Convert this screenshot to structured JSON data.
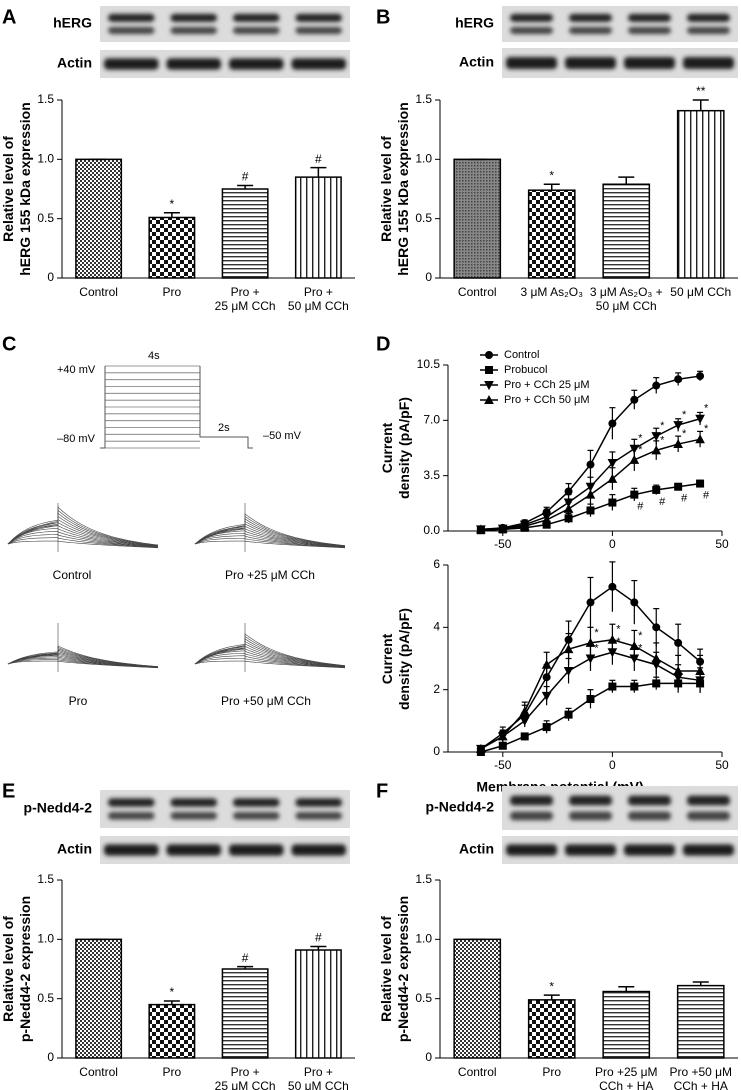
{
  "chart_data": [
    {
      "type": "bar",
      "panel": "A",
      "blot_labels": [
        "hERG",
        "Actin"
      ],
      "ylabel": "Relative level of\nhERG 155 kDa expression",
      "categories": [
        "Control",
        "Pro",
        "Pro +\n25 μM CCh",
        "Pro +\n50 μM CCh"
      ],
      "values": [
        1.0,
        0.51,
        0.75,
        0.85
      ],
      "errors": [
        0,
        0.04,
        0.03,
        0.08
      ],
      "annotations": [
        null,
        "*",
        "#",
        "#"
      ],
      "patterns": [
        "checker",
        "checker-coarse",
        "horizontal",
        "vertical"
      ],
      "color": "#000000",
      "ylim": [
        0,
        1.5
      ],
      "yticks": [
        0,
        0.5,
        {
          "value": 1,
          "label": "1.0"
        },
        1.5
      ]
    },
    {
      "type": "bar",
      "panel": "B",
      "blot_labels": [
        "hERG",
        "Actin"
      ],
      "ylabel": "Relative level of\nhERG 155 kDa expression",
      "categories": [
        "Control",
        "3 μM As₂O₃",
        "3 μM As₂O₃ +\n50 μM CCh",
        "50 μM CCh"
      ],
      "values": [
        1.0,
        0.74,
        0.79,
        1.41
      ],
      "errors": [
        0,
        0.05,
        0.06,
        0.09
      ],
      "annotations": [
        null,
        "*",
        null,
        "**"
      ],
      "patterns": [
        "dense",
        "checker-coarse",
        "horizontal",
        "vertical"
      ],
      "color": "#000000",
      "ylim": [
        0,
        1.5
      ],
      "yticks": [
        0,
        0.5,
        {
          "value": 1,
          "label": "1.0"
        },
        1.5
      ]
    },
    {
      "type": "traces",
      "panel": "C",
      "protocol_labels": [
        "+40 mV",
        "4s",
        "–80 mV",
        "2s",
        "–50 mV"
      ],
      "trace_labels": [
        "Control",
        "Pro +25 μM CCh",
        "Pro",
        "Pro +50 μM CCh"
      ]
    },
    {
      "type": "line",
      "panel": "D",
      "ylabel": "Current\ndensity (pA/pF)",
      "legend": "upper left",
      "x": [
        -60,
        -50,
        -40,
        -30,
        -20,
        -10,
        0,
        10,
        20,
        30,
        40
      ],
      "xlim": [
        -75,
        50
      ],
      "xticks": [
        -50,
        0,
        50
      ],
      "ylim": [
        0,
        10.5
      ],
      "yticks": [
        {
          "value": 0,
          "label": "0.0"
        },
        3.5,
        {
          "value": 7,
          "label": "7.0"
        },
        10.5
      ],
      "series": [
        {
          "name": "Control",
          "color": "#000000",
          "marker": "circle",
          "values": [
            0.1,
            0.2,
            0.5,
            1.2,
            2.5,
            4.2,
            6.8,
            8.3,
            9.2,
            9.6,
            9.8
          ],
          "errors": [
            0.1,
            0.1,
            0.2,
            0.3,
            0.5,
            0.9,
            1.0,
            0.6,
            0.5,
            0.4,
            0.3
          ],
          "point_labels": [
            null,
            null,
            null,
            null,
            null,
            null,
            null,
            null,
            null,
            null,
            null
          ]
        },
        {
          "name": "Probucol",
          "color": "#000000",
          "marker": "square",
          "values": [
            0.05,
            0.1,
            0.2,
            0.4,
            0.8,
            1.3,
            1.8,
            2.3,
            2.6,
            2.8,
            3.0
          ],
          "errors": [
            0.05,
            0.1,
            0.1,
            0.2,
            0.3,
            0.4,
            0.5,
            0.4,
            0.3,
            0.2,
            0.2
          ],
          "point_labels": [
            null,
            null,
            null,
            null,
            null,
            null,
            null,
            "#",
            "#",
            "#",
            "#"
          ]
        },
        {
          "name": "Pro + CCh 25 μM",
          "color": "#000000",
          "marker": "triangle-down",
          "values": [
            0.1,
            0.15,
            0.4,
            0.9,
            1.8,
            2.8,
            4.3,
            5.2,
            6.0,
            6.7,
            7.1
          ],
          "errors": [
            0.1,
            0.1,
            0.2,
            0.3,
            0.5,
            0.6,
            0.7,
            0.6,
            0.5,
            0.4,
            0.4
          ],
          "point_labels": [
            null,
            null,
            null,
            null,
            null,
            null,
            null,
            "*",
            "*",
            "*",
            "*"
          ]
        },
        {
          "name": "Pro + CCh 50 μM",
          "color": "#000000",
          "marker": "triangle-up",
          "values": [
            0.1,
            0.15,
            0.3,
            0.7,
            1.4,
            2.3,
            3.3,
            4.5,
            5.1,
            5.5,
            5.8
          ],
          "errors": [
            0.1,
            0.1,
            0.2,
            0.3,
            0.4,
            0.6,
            0.7,
            0.7,
            0.6,
            0.5,
            0.5
          ],
          "point_labels": [
            null,
            null,
            null,
            null,
            null,
            null,
            null,
            "*",
            "*",
            "*",
            "*"
          ]
        }
      ]
    },
    {
      "type": "line",
      "ylabel": "Current\ndensity (pA/pF)",
      "xlabel": "Membrane potential (mV)",
      "x": [
        -60,
        -50,
        -40,
        -30,
        -20,
        -10,
        0,
        10,
        20,
        30,
        40
      ],
      "xlim": [
        -75,
        50
      ],
      "xticks": [
        -50,
        0,
        50
      ],
      "ylim": [
        0,
        6
      ],
      "yticks": [
        0,
        2,
        4,
        6
      ],
      "series": [
        {
          "color": "#000000",
          "marker": "circle",
          "values": [
            0.1,
            0.6,
            1.2,
            2.4,
            3.6,
            4.8,
            5.3,
            4.8,
            4.0,
            3.5,
            2.9
          ],
          "errors": [
            0.1,
            0.2,
            0.3,
            0.4,
            0.6,
            0.8,
            0.8,
            0.7,
            0.6,
            0.6,
            0.4
          ],
          "point_labels": [
            null,
            null,
            null,
            null,
            null,
            null,
            null,
            null,
            null,
            null,
            null
          ]
        },
        {
          "color": "#000000",
          "marker": "square",
          "values": [
            0.0,
            0.2,
            0.5,
            0.8,
            1.2,
            1.7,
            2.1,
            2.1,
            2.2,
            2.2,
            2.2
          ],
          "errors": [
            0.1,
            0.1,
            0.1,
            0.2,
            0.2,
            0.3,
            0.2,
            0.2,
            0.2,
            0.3,
            0.3
          ],
          "point_labels": [
            null,
            null,
            null,
            null,
            null,
            null,
            null,
            null,
            null,
            null,
            null
          ]
        },
        {
          "color": "#000000",
          "marker": "triangle-down",
          "values": [
            0.1,
            0.5,
            1.0,
            1.8,
            2.6,
            3.0,
            3.2,
            3.0,
            2.8,
            2.4,
            2.3
          ],
          "errors": [
            0.1,
            0.2,
            0.2,
            0.3,
            0.4,
            0.4,
            0.4,
            0.4,
            0.4,
            0.4,
            0.4
          ],
          "point_labels": [
            null,
            null,
            null,
            null,
            null,
            "*",
            "*",
            "*",
            null,
            null,
            null
          ]
        },
        {
          "color": "#000000",
          "marker": "triangle-up",
          "values": [
            0.1,
            0.5,
            1.3,
            2.8,
            3.3,
            3.5,
            3.6,
            3.4,
            3.0,
            2.6,
            2.6
          ],
          "errors": [
            0.1,
            0.2,
            0.3,
            0.4,
            0.5,
            0.5,
            0.5,
            0.5,
            0.5,
            0.5,
            0.5
          ],
          "point_labels": [
            null,
            null,
            null,
            null,
            null,
            "*",
            "*",
            "*",
            null,
            null,
            null
          ]
        }
      ]
    },
    {
      "type": "bar",
      "panel": "E",
      "blot_labels": [
        "p-Nedd4-2",
        "Actin"
      ],
      "ylabel": "Relative level of\np-Nedd4-2 expression",
      "categories": [
        "Control",
        "Pro",
        "Pro +\n25 μM CCh",
        "Pro +\n50 μM CCh"
      ],
      "values": [
        1.0,
        0.45,
        0.75,
        0.91
      ],
      "errors": [
        0,
        0.03,
        0.02,
        0.03
      ],
      "annotations": [
        null,
        "*",
        "#",
        "#"
      ],
      "patterns": [
        "checker",
        "checker-coarse",
        "horizontal",
        "vertical"
      ],
      "color": "#000000",
      "ylim": [
        0,
        1.5
      ],
      "yticks": [
        0,
        0.5,
        {
          "value": 1,
          "label": "1.0"
        },
        1.5
      ]
    },
    {
      "type": "bar",
      "panel": "F",
      "blot_labels": [
        "p-Nedd4-2",
        "Actin"
      ],
      "ylabel": "Relative level of\np-Nedd4-2 expression",
      "categories": [
        "Control",
        "Pro",
        "Pro +25 μM\nCCh + HA",
        "Pro +50 μM\nCCh + HA"
      ],
      "values": [
        1.0,
        0.49,
        0.56,
        0.61
      ],
      "errors": [
        0,
        0.04,
        0.04,
        0.03
      ],
      "annotations": [
        null,
        "*",
        null,
        null
      ],
      "patterns": [
        "checker",
        "checker-coarse",
        "horizontal",
        "horizontal"
      ],
      "color": "#000000",
      "ylim": [
        0,
        1.5
      ],
      "yticks": [
        0,
        0.5,
        {
          "value": 1,
          "label": "1.0"
        },
        1.5
      ]
    }
  ]
}
